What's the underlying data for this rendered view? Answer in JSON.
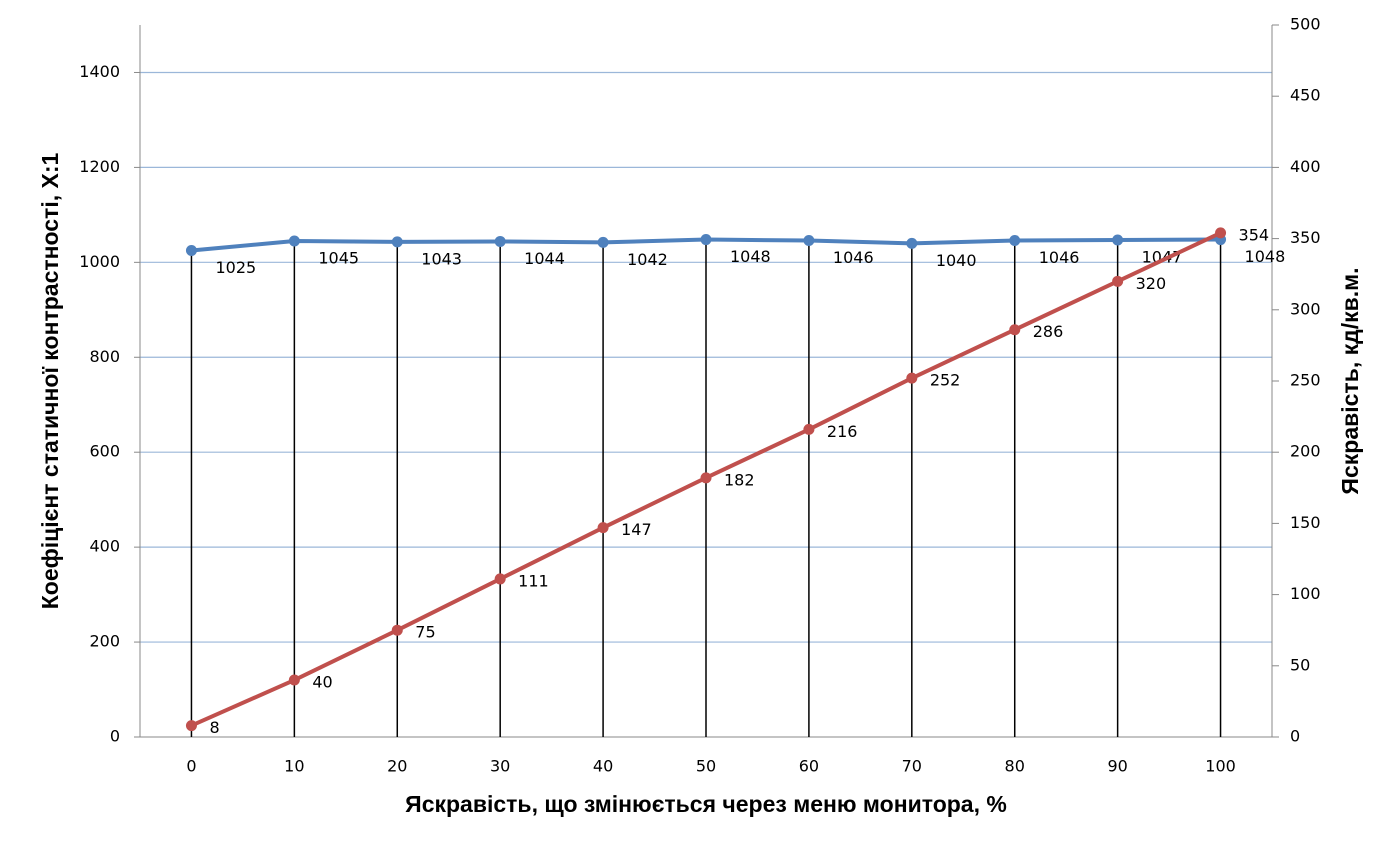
{
  "chart_data": {
    "type": "line",
    "xlabel": "Яскравість, що змінюється через меню монитора, %",
    "ylabel": "Коефіцієнт статичної контрастності, Х:1",
    "y2label": "Яскравість, кд/кв.м.",
    "categories": [
      "0",
      "10",
      "20",
      "30",
      "40",
      "50",
      "60",
      "70",
      "80",
      "90",
      "100"
    ],
    "series": [
      {
        "color": "#4f81bd",
        "values": [
          1025,
          1045,
          1043,
          1044,
          1042,
          1048,
          1046,
          1040,
          1046,
          1047,
          1048
        ]
      },
      {
        "color": "#c0504d",
        "axis": "y2",
        "values": [
          8,
          40,
          75,
          111,
          147,
          182,
          216,
          252,
          286,
          320,
          354
        ]
      }
    ],
    "ylim": [
      0,
      1500
    ],
    "yticks": [
      0,
      200,
      400,
      600,
      800,
      1000,
      1200,
      1400
    ],
    "y2lim": [
      0,
      500
    ],
    "y2ticks": [
      0,
      50,
      100,
      150,
      200,
      250,
      300,
      350,
      400,
      450,
      500
    ],
    "grid": true,
    "drop_lines": true
  }
}
